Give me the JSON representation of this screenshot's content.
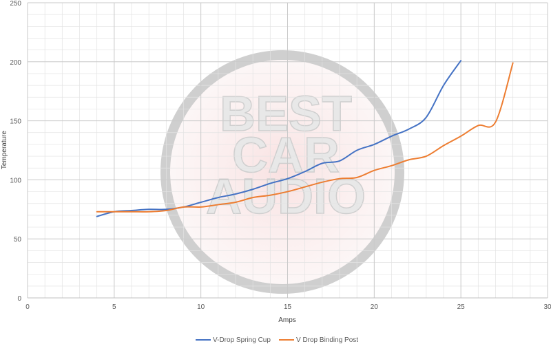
{
  "watermark": {
    "lines": [
      "BEST",
      "CAR",
      "AUDIO"
    ],
    "colors": {
      "ring": "#bdbdbd",
      "fill": "#ececec",
      "accent": "#f2c4c4"
    }
  },
  "chart_data": {
    "type": "line",
    "title": "",
    "xlabel": "Amps",
    "ylabel": "Temperature",
    "xlim": [
      0,
      30
    ],
    "ylim": [
      0,
      250
    ],
    "xticks": [
      0,
      5,
      10,
      15,
      20,
      25,
      30
    ],
    "yticks": [
      0,
      50,
      100,
      150,
      200,
      250
    ],
    "grid": true,
    "legend_position": "bottom",
    "series": [
      {
        "name": "V-Drop Spring Cup",
        "color": "#4472c4",
        "x": [
          4,
          5,
          6,
          7,
          8,
          9,
          10,
          11,
          12,
          13,
          14,
          15,
          16,
          17,
          18,
          19,
          20,
          21,
          22,
          23,
          24,
          25
        ],
        "y": [
          69,
          73,
          74,
          75,
          75,
          77,
          81,
          85,
          88,
          92,
          97,
          101,
          107,
          114,
          116,
          125,
          130,
          137,
          143,
          153,
          180,
          201
        ]
      },
      {
        "name": "V Drop Binding Post",
        "color": "#ed7d31",
        "x": [
          4,
          5,
          6,
          7,
          8,
          9,
          10,
          11,
          12,
          13,
          14,
          15,
          16,
          17,
          18,
          19,
          20,
          21,
          22,
          23,
          24,
          25,
          26,
          27,
          28
        ],
        "y": [
          73,
          73,
          73,
          73,
          74,
          77,
          77,
          79,
          81,
          85,
          87,
          90,
          94,
          98,
          101,
          102,
          108,
          112,
          117,
          120,
          129,
          137,
          146,
          149,
          199
        ]
      }
    ]
  }
}
